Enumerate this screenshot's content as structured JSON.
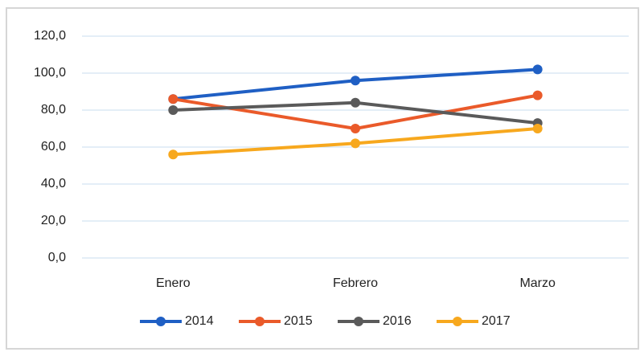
{
  "chart_data": {
    "type": "line",
    "categories": [
      "Enero",
      "Febrero",
      "Marzo"
    ],
    "series": [
      {
        "name": "2014",
        "color": "#1f5fc4",
        "values": [
          86,
          96,
          102
        ]
      },
      {
        "name": "2015",
        "color": "#ea5a2a",
        "values": [
          86,
          70,
          88
        ]
      },
      {
        "name": "2016",
        "color": "#5a5a5a",
        "values": [
          80,
          84,
          73
        ]
      },
      {
        "name": "2017",
        "color": "#f7a81e",
        "values": [
          56,
          62,
          70
        ]
      }
    ],
    "ylim": [
      0,
      120
    ],
    "yticks": [
      {
        "value": 0,
        "label": "0,0"
      },
      {
        "value": 20,
        "label": "20,0"
      },
      {
        "value": 40,
        "label": "40,0"
      },
      {
        "value": 60,
        "label": "60,0"
      },
      {
        "value": 80,
        "label": "80,0"
      },
      {
        "value": 100,
        "label": "100,0"
      },
      {
        "value": 120,
        "label": "120,0"
      }
    ],
    "grid": true,
    "legend": "bottom"
  }
}
